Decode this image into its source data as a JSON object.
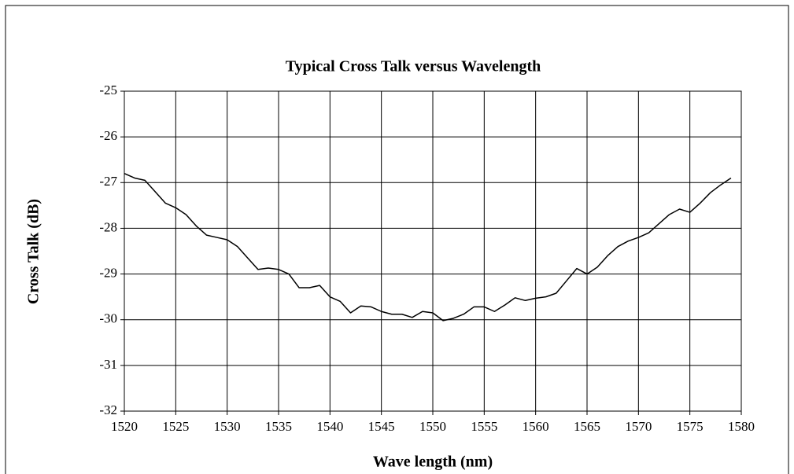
{
  "chart_data": {
    "type": "line",
    "title": "Typical Cross Talk  versus  Wavelength",
    "x_label": "Wave length (nm)",
    "y_label": "Cross Talk (dB)",
    "x": [
      1520,
      1521,
      1522,
      1523,
      1524,
      1525,
      1526,
      1527,
      1528,
      1529,
      1530,
      1531,
      1532,
      1533,
      1534,
      1535,
      1536,
      1537,
      1538,
      1539,
      1540,
      1541,
      1542,
      1543,
      1544,
      1545,
      1546,
      1547,
      1548,
      1549,
      1550,
      1551,
      1552,
      1553,
      1554,
      1555,
      1556,
      1557,
      1558,
      1559,
      1560,
      1561,
      1562,
      1563,
      1564,
      1565,
      1566,
      1567,
      1568,
      1569,
      1570,
      1571,
      1572,
      1573,
      1574,
      1575,
      1576,
      1577,
      1578,
      1579
    ],
    "series": [
      {
        "name": "Cross Talk",
        "color": "#000000",
        "values": [
          -26.8,
          -26.9,
          -26.95,
          -27.2,
          -27.45,
          -27.55,
          -27.7,
          -27.95,
          -28.15,
          -28.2,
          -28.25,
          -28.4,
          -28.65,
          -28.9,
          -28.87,
          -28.9,
          -29.0,
          -29.3,
          -29.3,
          -29.25,
          -29.5,
          -29.6,
          -29.85,
          -29.7,
          -29.72,
          -29.82,
          -29.88,
          -29.88,
          -29.95,
          -29.82,
          -29.85,
          -30.02,
          -29.97,
          -29.88,
          -29.72,
          -29.72,
          -29.82,
          -29.68,
          -29.52,
          -29.58,
          -29.53,
          -29.5,
          -29.42,
          -29.15,
          -28.88,
          -29.0,
          -28.85,
          -28.6,
          -28.4,
          -28.28,
          -28.2,
          -28.1,
          -27.9,
          -27.7,
          -27.58,
          -27.65,
          -27.45,
          -27.22,
          -27.05,
          -26.9
        ]
      }
    ],
    "xlim": [
      1520,
      1580
    ],
    "xticks": [
      1520,
      1525,
      1530,
      1535,
      1540,
      1545,
      1550,
      1555,
      1560,
      1565,
      1570,
      1575,
      1580
    ],
    "ylim": [
      -32,
      -25
    ],
    "yticks": [
      -32,
      -31,
      -30,
      -29,
      -28,
      -27,
      -26,
      -25
    ],
    "grid": true
  }
}
